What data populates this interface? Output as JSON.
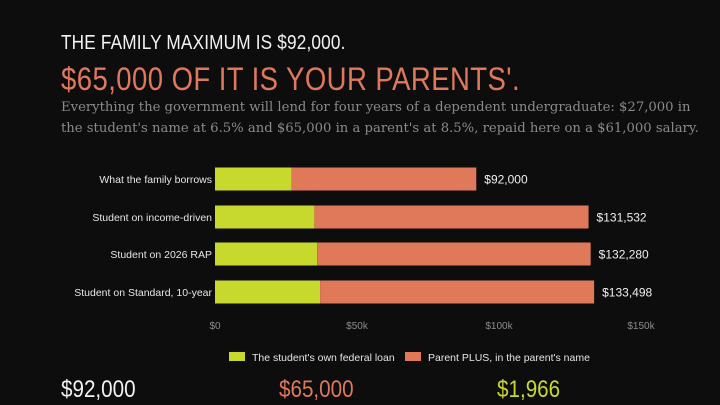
{
  "header": {
    "kicker": "THE FAMILY MAXIMUM IS $92,000.",
    "headline": "$65,000 OF IT IS YOUR PARENTS'.",
    "deck": "Everything the government will lend for four years of a dependent undergraduate: $27,000 in the student's name at 6.5% and $65,000 in a parent's at 8.5%, repaid here on a $61,000 salary."
  },
  "colors": {
    "student": "#c8d92e",
    "parent": "#e0785a",
    "background": "#0d0d0d"
  },
  "chart_data": {
    "type": "bar",
    "orientation": "horizontal",
    "stacked": true,
    "categories": [
      "What the family borrows",
      "Student on income-driven",
      "Student on 2026 RAP",
      "Student on Standard, 10-year"
    ],
    "series": [
      {
        "name": "The student's own federal loan",
        "values": [
          27000,
          35000,
          36000,
          37000
        ]
      },
      {
        "name": "Parent PLUS, in the parent's name",
        "values": [
          65000,
          96532,
          96280,
          96498
        ]
      }
    ],
    "totals_labels": [
      "$92,000",
      "$131,532",
      "$132,280",
      "$133,498"
    ],
    "totals": [
      92000,
      131532,
      132280,
      133498
    ],
    "xlim": [
      0,
      150000
    ],
    "xticks": [
      0,
      50000,
      100000,
      150000
    ],
    "xtick_labels": [
      "$0",
      "$50k",
      "$100k",
      "$150k"
    ],
    "grid": false,
    "legend_position": "bottom"
  },
  "stats": {
    "values": [
      "$92,000",
      "$65,000",
      "$1,966"
    ]
  }
}
